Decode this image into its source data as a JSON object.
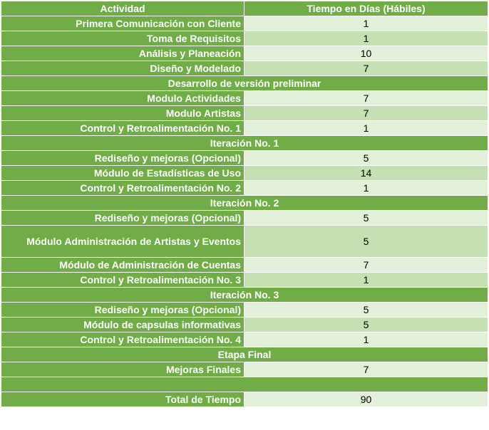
{
  "headers": {
    "activity": "Actividad",
    "time": "Tiempo en Días (Hábiles)"
  },
  "rows": [
    {
      "type": "item",
      "label": "Primera Comunicación con Cliente",
      "value": "1"
    },
    {
      "type": "item",
      "label": "Toma de Requisitos",
      "value": "1"
    },
    {
      "type": "item",
      "label": "Análisis y Planeación",
      "value": "10"
    },
    {
      "type": "item",
      "label": "Diseño y Modelado",
      "value": "7"
    },
    {
      "type": "section",
      "label": "Desarrollo de versión preliminar"
    },
    {
      "type": "item",
      "label": "Modulo Actividades",
      "value": "7"
    },
    {
      "type": "item",
      "label": "Modulo Artistas",
      "value": "7"
    },
    {
      "type": "item",
      "label": "Control y Retroalimentación No. 1",
      "value": "1"
    },
    {
      "type": "section",
      "label": "Iteración No. 1"
    },
    {
      "type": "item",
      "label": "Rediseño y mejoras (Opcional)",
      "value": "5"
    },
    {
      "type": "item",
      "label": "Módulo de Estadísticas de Uso",
      "value": "14"
    },
    {
      "type": "item",
      "label": "Control y Retroalimentación No. 2",
      "value": "1"
    },
    {
      "type": "section",
      "label": "Iteración No. 2"
    },
    {
      "type": "item",
      "label": "Rediseño y mejoras (Opcional)",
      "value": "5"
    },
    {
      "type": "item",
      "label": "Módulo Administración de Artistas y Eventos",
      "value": "5",
      "tall": true
    },
    {
      "type": "item",
      "label": "Módulo de Administración de Cuentas",
      "value": "7"
    },
    {
      "type": "item",
      "label": "Control y Retroalimentación No. 3",
      "value": "1"
    },
    {
      "type": "section",
      "label": "Iteración No. 3"
    },
    {
      "type": "item",
      "label": "Rediseño y mejoras (Opcional)",
      "value": "5"
    },
    {
      "type": "item",
      "label": "Módulo de capsulas informativas",
      "value": "5"
    },
    {
      "type": "item",
      "label": "Control y Retroalimentación No. 4",
      "value": "1"
    },
    {
      "type": "section",
      "label": "Etapa Final"
    },
    {
      "type": "item",
      "label": "Mejoras Finales",
      "value": "7"
    },
    {
      "type": "blank"
    },
    {
      "type": "item",
      "label": "Total de Tiempo",
      "value": "90"
    }
  ],
  "colors": {
    "header_green": "#70ad47",
    "value_light": "#e2efd9",
    "value_mid": "#c5e0b3"
  }
}
